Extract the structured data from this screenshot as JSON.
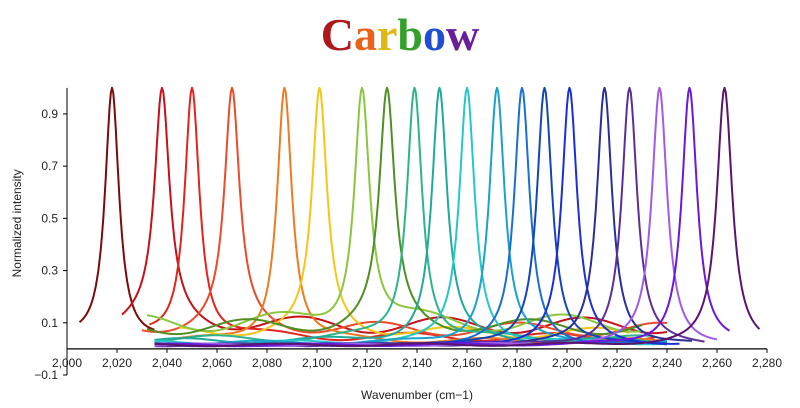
{
  "chart_data": {
    "type": "line",
    "title": "Carbow",
    "title_letters": [
      "C",
      "a",
      "r",
      "b",
      "o",
      "w"
    ],
    "title_letter_colors": [
      "#b0171b",
      "#e8641b",
      "#e0b814",
      "#34a02c",
      "#1f4fcf",
      "#6a1f9a"
    ],
    "xlabel": "Wavenumber (cm−1)",
    "ylabel": "Normalized intensity",
    "xlim": [
      2000,
      2280
    ],
    "ylim": [
      -0.1,
      1.03
    ],
    "xticks": [
      2000,
      2020,
      2040,
      2060,
      2080,
      2100,
      2120,
      2140,
      2160,
      2180,
      2200,
      2220,
      2240,
      2260,
      2280
    ],
    "xtick_labels": [
      "2,000",
      "2,020",
      "2,040",
      "2,060",
      "2,080",
      "2,100",
      "2,120",
      "2,140",
      "2,160",
      "2,180",
      "2,200",
      "2,220",
      "2,240",
      "2,260",
      "2,280"
    ],
    "yticks": [
      -0.1,
      0.1,
      0.3,
      0.5,
      0.7,
      0.9
    ],
    "ytick_labels": [
      "−0.1",
      "0.1",
      "0.3",
      "0.5",
      "0.7",
      "0.9"
    ],
    "grid": false,
    "legend": "none",
    "series": [
      {
        "peak": 2018,
        "width": 3.4,
        "xmin": 2005,
        "xmax": 2035,
        "baseline": 0.05,
        "color": "#7b0c0c"
      },
      {
        "peak": 2038,
        "width": 3.6,
        "xmin": 2022,
        "xmax": 2240,
        "baseline": 0.12,
        "color": "#c4111b"
      },
      {
        "peak": 2050,
        "width": 3.6,
        "xmin": 2033,
        "xmax": 2235,
        "baseline": 0.06,
        "color": "#e0251e"
      },
      {
        "peak": 2066,
        "width": 3.6,
        "xmin": 2030,
        "xmax": 2240,
        "baseline": 0.1,
        "color": "#eb4a2c"
      },
      {
        "peak": 2087,
        "width": 3.6,
        "xmin": 2035,
        "xmax": 2240,
        "baseline": 0.04,
        "color": "#f07a22"
      },
      {
        "peak": 2101,
        "width": 3.6,
        "xmin": 2045,
        "xmax": 2225,
        "baseline": 0.08,
        "color": "#f5c61a"
      },
      {
        "peak": 2118,
        "width": 3.7,
        "xmin": 2032,
        "xmax": 2230,
        "baseline": 0.13,
        "color": "#8cc63f"
      },
      {
        "peak": 2128,
        "width": 3.7,
        "xmin": 2032,
        "xmax": 2230,
        "baseline": 0.11,
        "color": "#4f8f23"
      },
      {
        "peak": 2139,
        "width": 3.7,
        "xmin": 2035,
        "xmax": 2235,
        "baseline": 0.05,
        "color": "#2eb38d"
      },
      {
        "peak": 2149,
        "width": 3.7,
        "xmin": 2035,
        "xmax": 2235,
        "baseline": 0.04,
        "color": "#21a999"
      },
      {
        "peak": 2160,
        "width": 3.7,
        "xmin": 2035,
        "xmax": 2240,
        "baseline": 0.03,
        "color": "#26c6c9"
      },
      {
        "peak": 2172,
        "width": 3.7,
        "xmin": 2035,
        "xmax": 2240,
        "baseline": 0.03,
        "color": "#1aa2c9"
      },
      {
        "peak": 2182,
        "width": 3.7,
        "xmin": 2035,
        "xmax": 2240,
        "baseline": 0.02,
        "color": "#1a6fd1"
      },
      {
        "peak": 2191,
        "width": 3.7,
        "xmin": 2035,
        "xmax": 2240,
        "baseline": 0.02,
        "color": "#1546b8"
      },
      {
        "peak": 2201,
        "width": 3.7,
        "xmin": 2035,
        "xmax": 2245,
        "baseline": 0.02,
        "color": "#1b2fd6"
      },
      {
        "peak": 2215,
        "width": 3.7,
        "xmin": 2035,
        "xmax": 2250,
        "baseline": 0.02,
        "color": "#2a2f9a"
      },
      {
        "peak": 2225,
        "width": 3.7,
        "xmin": 2035,
        "xmax": 2255,
        "baseline": 0.02,
        "color": "#5a2f9a"
      },
      {
        "peak": 2237,
        "width": 3.7,
        "xmin": 2035,
        "xmax": 2260,
        "baseline": 0.02,
        "color": "#a15be6"
      },
      {
        "peak": 2249,
        "width": 3.7,
        "xmin": 2035,
        "xmax": 2265,
        "baseline": 0.02,
        "color": "#6a18d9"
      },
      {
        "peak": 2263,
        "width": 3.7,
        "xmin": 2035,
        "xmax": 2277,
        "baseline": 0.02,
        "color": "#5a1470"
      }
    ]
  }
}
